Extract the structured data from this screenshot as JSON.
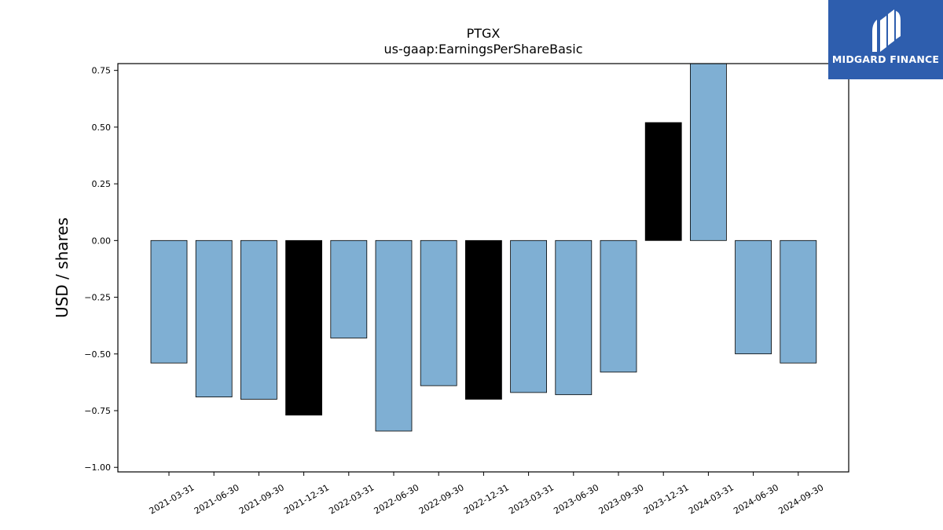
{
  "chart_data": {
    "type": "bar",
    "title": "PTGX",
    "subtitle": "us-gaap:EarningsPerShareBasic",
    "xlabel": "",
    "ylabel": "USD / shares",
    "ylim": [
      -1.02,
      0.78
    ],
    "yticks": [
      0.75,
      0.5,
      0.25,
      0.0,
      -0.25,
      -0.5,
      -0.75,
      -1.0
    ],
    "ytick_labels": [
      "0.75",
      "0.50",
      "0.25",
      "0.00",
      "−0.25",
      "−0.50",
      "−0.75",
      "−1.00"
    ],
    "grid": false,
    "categories": [
      "2021-03-31",
      "2021-06-30",
      "2021-09-30",
      "2021-12-31",
      "2022-03-31",
      "2022-06-30",
      "2022-09-30",
      "2022-12-31",
      "2023-03-31",
      "2023-06-30",
      "2023-09-30",
      "2023-12-31",
      "2024-03-31",
      "2024-06-30",
      "2024-09-30"
    ],
    "values": [
      -0.54,
      -0.69,
      -0.7,
      -0.77,
      -0.43,
      -0.84,
      -0.64,
      -0.7,
      -0.67,
      -0.68,
      -0.58,
      0.52,
      0.8,
      -0.5,
      -0.54
    ],
    "highlighted": [
      false,
      false,
      false,
      true,
      false,
      false,
      false,
      true,
      false,
      false,
      false,
      true,
      false,
      false,
      false
    ],
    "colors": {
      "bar": "#7fafd3",
      "highlight": "#000000",
      "edge": "#000000",
      "logo_bg": "#2e5eae"
    }
  },
  "logo": {
    "text": "MIDGARD FINANCE",
    "icon": "midgard-logo-icon"
  }
}
